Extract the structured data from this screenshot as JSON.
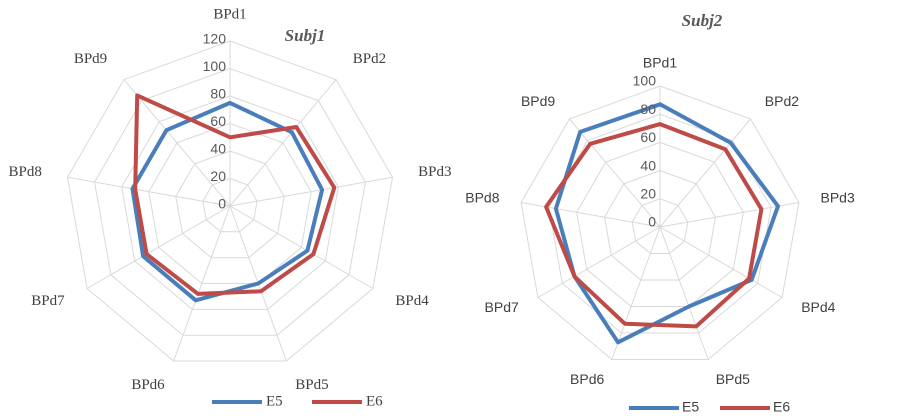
{
  "chart_data": [
    {
      "type": "radar",
      "title": "Subj1",
      "categories": [
        "BPd1",
        "BPd2",
        "BPd3",
        "BPd4",
        "BPd5",
        "BPd6",
        "BPd7",
        "BPd8",
        "BPd9"
      ],
      "rlim": [
        0,
        120
      ],
      "ticks": [
        "0",
        "20",
        "40",
        "60",
        "80",
        "100",
        "120"
      ],
      "grid": true,
      "legend": "bottom",
      "series": [
        {
          "name": "E5",
          "color": "#4a7ebb",
          "values": [
            75,
            70,
            68,
            65,
            60,
            73,
            73,
            72,
            72
          ]
        },
        {
          "name": "E6",
          "color": "#be4b48",
          "values": [
            50,
            75,
            77,
            70,
            66,
            68,
            70,
            70,
            105
          ]
        }
      ]
    },
    {
      "type": "radar",
      "title": "Subj2",
      "categories": [
        "BPd1",
        "BPd2",
        "BPd3",
        "BPd4",
        "BPd5",
        "BPd6",
        "BPd7",
        "BPd8",
        "BPd9"
      ],
      "rlim": [
        0,
        100
      ],
      "ticks": [
        "0",
        "20",
        "40",
        "60",
        "80",
        "100"
      ],
      "grid": true,
      "legend": "bottom",
      "series": [
        {
          "name": "E5",
          "color": "#4a7ebb",
          "values": [
            87,
            78,
            85,
            75,
            60,
            87,
            70,
            75,
            88
          ]
        },
        {
          "name": "E6",
          "color": "#be4b48",
          "values": [
            73,
            72,
            73,
            73,
            75,
            73,
            70,
            82,
            77
          ]
        }
      ]
    }
  ]
}
